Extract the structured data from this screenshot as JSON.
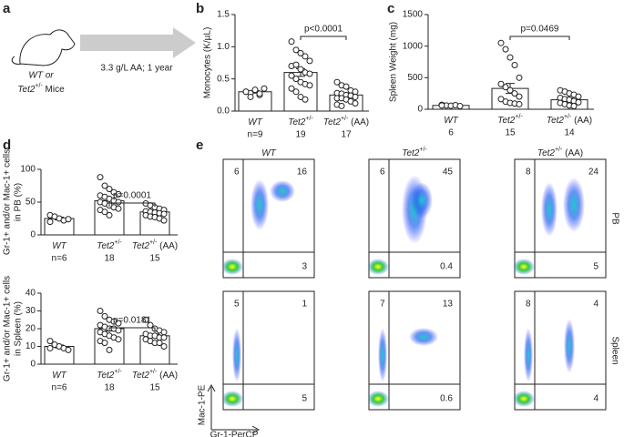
{
  "panel_a": {
    "label": "a",
    "subject_line1": "WT or",
    "subject_line2": {
      "base": "Tet2",
      "sup": "+/-",
      "suffix": " Mice"
    },
    "treatment": "3.3 g/L AA; 1 year"
  },
  "panel_b": {
    "label": "b",
    "y_label": "Monocytes (K/µL)",
    "ylim": [
      0,
      1.5
    ],
    "yticks": [
      {
        "value": 0,
        "label": "0.0"
      },
      {
        "value": 0.5,
        "label": "0.5"
      },
      {
        "value": 1,
        "label": "1.0"
      },
      {
        "value": 1.5,
        "label": "1.5"
      }
    ],
    "categories": [
      {
        "base": "WT"
      },
      {
        "base": "Tet2",
        "sup": "+/-"
      },
      {
        "base": "Tet2",
        "sup": "+/-",
        "suffix": " (AA)"
      }
    ],
    "n_labels": [
      "n=9",
      "19",
      "17"
    ],
    "pvalue": "p<0.0001",
    "means": [
      0.3,
      0.6,
      0.25
    ],
    "sems": [
      0.015,
      0.06,
      0.03
    ],
    "points": [
      [
        0.3,
        0.28,
        0.32,
        0.25,
        0.35,
        0.3,
        0.22,
        0.33,
        0.27
      ],
      [
        1.08,
        0.95,
        0.9,
        0.85,
        0.78,
        0.7,
        0.72,
        0.65,
        0.6,
        0.58,
        0.55,
        0.5,
        0.45,
        0.42,
        0.4,
        0.35,
        0.3,
        0.22,
        0.18
      ],
      [
        0.45,
        0.4,
        0.38,
        0.32,
        0.3,
        0.28,
        0.27,
        0.25,
        0.24,
        0.22,
        0.2,
        0.2,
        0.18,
        0.15,
        0.12,
        0.1,
        0.08
      ]
    ]
  },
  "panel_c": {
    "label": "c",
    "y_label": "Spleen Weight (mg)",
    "ylim": [
      0,
      1500
    ],
    "yticks": [
      0,
      500,
      1000,
      1500
    ],
    "categories": [
      {
        "base": "WT"
      },
      {
        "base": "Tet2",
        "sup": "+/-"
      },
      {
        "base": "Tet2",
        "sup": "+/-",
        "suffix": " (AA)"
      }
    ],
    "n_labels": [
      "6",
      "15",
      "14"
    ],
    "pvalue": "p=0.0469",
    "means": [
      60,
      330,
      150
    ],
    "sems": [
      10,
      80,
      25
    ],
    "points": [
      [
        70,
        60,
        55,
        65,
        50,
        60
      ],
      [
        1050,
        950,
        820,
        700,
        500,
        400,
        350,
        300,
        250,
        200,
        160,
        120,
        100,
        90,
        80
      ],
      [
        300,
        280,
        250,
        230,
        200,
        180,
        160,
        150,
        130,
        110,
        100,
        80,
        60,
        50
      ]
    ]
  },
  "panel_d_pb": {
    "label": "d",
    "y_label": [
      "Gr-1+ and/or Mac-1+ cells",
      "in PB (%)"
    ],
    "ylim": [
      0,
      100
    ],
    "yticks": [
      0,
      50,
      100
    ],
    "categories": [
      {
        "base": "WT"
      },
      {
        "base": "Tet2",
        "sup": "+/-"
      },
      {
        "base": "Tet2",
        "sup": "+/-",
        "suffix": " (AA)"
      }
    ],
    "n_labels": [
      "n=6",
      "18",
      "15"
    ],
    "pvalue": "p=0.0001",
    "means": [
      25,
      52,
      35
    ],
    "sems": [
      2,
      3.5,
      2
    ],
    "points": [
      [
        30,
        28,
        25,
        22,
        24,
        20
      ],
      [
        88,
        75,
        70,
        65,
        62,
        60,
        58,
        55,
        52,
        50,
        50,
        48,
        45,
        42,
        40,
        38,
        35,
        30
      ],
      [
        48,
        45,
        42,
        40,
        38,
        36,
        35,
        34,
        33,
        32,
        30,
        28,
        27,
        25,
        22
      ]
    ]
  },
  "panel_d_spleen": {
    "y_label": [
      "Gr-1+ and/or Mac-1+ cells",
      "in Spleen (%)"
    ],
    "ylim": [
      0,
      40
    ],
    "yticks": [
      0,
      10,
      20,
      30,
      40
    ],
    "categories": [
      {
        "base": "WT"
      },
      {
        "base": "Tet2",
        "sup": "+/-"
      },
      {
        "base": "Tet2",
        "sup": "+/-",
        "suffix": " (AA)"
      }
    ],
    "n_labels": [
      "n=6",
      "18",
      "15"
    ],
    "pvalue": "p=0.0181",
    "means": [
      10,
      20,
      16
    ],
    "sems": [
      0.8,
      1.3,
      1
    ],
    "points": [
      [
        13,
        11,
        10,
        9,
        8,
        9
      ],
      [
        30,
        27,
        25,
        24,
        23,
        22,
        21,
        20,
        20,
        19,
        18,
        17,
        16,
        15,
        14,
        13,
        12,
        8
      ],
      [
        25,
        22,
        20,
        19,
        18,
        17,
        16,
        16,
        15,
        15,
        14,
        13,
        12,
        12,
        10
      ]
    ]
  },
  "panel_e": {
    "label": "e",
    "columns": [
      {
        "base": "WT"
      },
      {
        "base": "Tet2",
        "sup": "+/-"
      },
      {
        "base": "Tet2",
        "sup": "+/-",
        "suffix": " (AA)"
      }
    ],
    "rows": [
      "PB",
      "Spleen"
    ],
    "quadrants": [
      [
        [
          6,
          16,
          3
        ],
        [
          6,
          45,
          0.4
        ],
        [
          8,
          24,
          5
        ]
      ],
      [
        [
          5,
          1,
          5
        ],
        [
          7,
          13,
          0.6
        ],
        [
          8,
          4,
          4
        ]
      ]
    ],
    "y_axis": "Mac-1-PE",
    "x_axis": "Gr-1-PerCP"
  }
}
